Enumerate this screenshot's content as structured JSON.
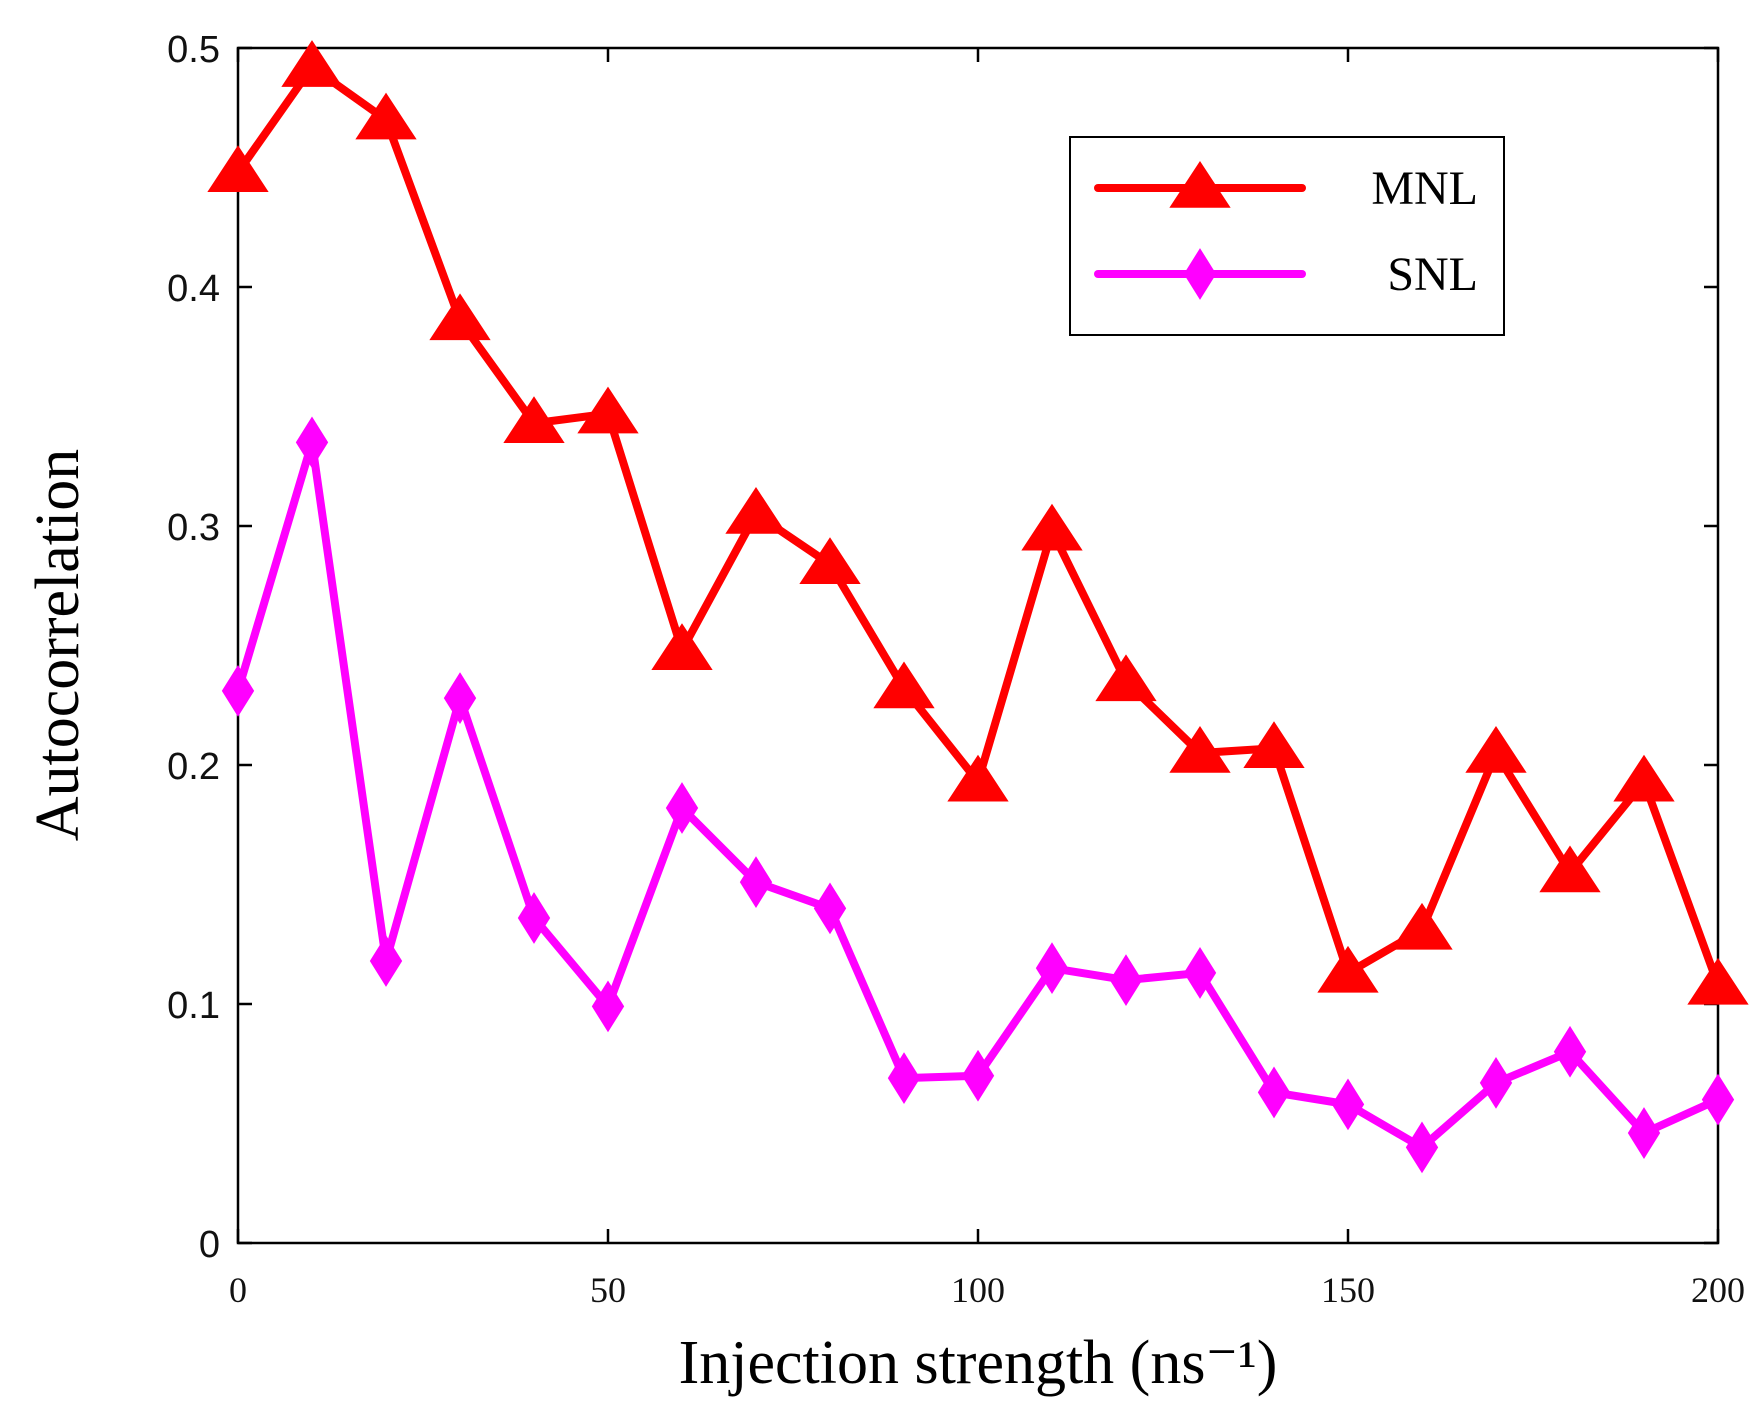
{
  "chart_data": {
    "type": "line",
    "title": "",
    "xlabel": "Injection strength (ns⁻¹)",
    "ylabel": "Autocorrelation",
    "xlim": [
      0,
      200
    ],
    "ylim": [
      0,
      0.5
    ],
    "xticks": [
      0,
      50,
      100,
      150,
      200
    ],
    "xtick_labels": [
      "0",
      "50",
      "100",
      "150",
      "200"
    ],
    "yticks": [
      0,
      0.1,
      0.2,
      0.3,
      0.4,
      0.5
    ],
    "ytick_labels": [
      "0",
      "0.1",
      "0.2",
      "0.3",
      "0.4",
      "0.5"
    ],
    "grid": false,
    "legend_position": "top-right",
    "x": [
      0,
      10,
      20,
      30,
      40,
      50,
      60,
      70,
      80,
      90,
      100,
      110,
      120,
      130,
      140,
      150,
      160,
      170,
      180,
      190,
      200
    ],
    "series": [
      {
        "name": "MNL",
        "color": "#ff0000",
        "marker": "triangle",
        "values": [
          0.448,
          0.492,
          0.47,
          0.386,
          0.343,
          0.347,
          0.248,
          0.305,
          0.284,
          0.232,
          0.193,
          0.298,
          0.235,
          0.205,
          0.207,
          0.113,
          0.131,
          0.205,
          0.155,
          0.193,
          0.108
        ]
      },
      {
        "name": "SNL",
        "color": "#ff00ff",
        "marker": "diamond",
        "values": [
          0.231,
          0.335,
          0.118,
          0.228,
          0.136,
          0.099,
          0.182,
          0.151,
          0.14,
          0.069,
          0.07,
          0.115,
          0.11,
          0.113,
          0.063,
          0.058,
          0.04,
          0.067,
          0.08,
          0.046,
          0.06
        ]
      }
    ]
  }
}
